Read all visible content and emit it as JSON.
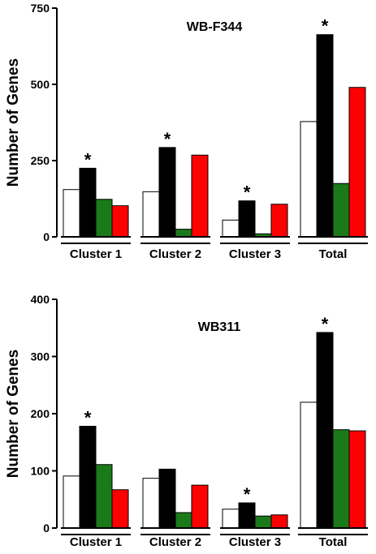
{
  "chart_data": [
    {
      "type": "bar",
      "title": "WB-F344",
      "ylabel": "Number of Genes",
      "ylim": [
        0,
        750
      ],
      "yticks": [
        0,
        250,
        500,
        750
      ],
      "categories": [
        "Cluster 1",
        "Cluster 2",
        "Cluster 3",
        "Total"
      ],
      "series_colors": [
        "#ffffff",
        "#000000",
        "#1a7a1a",
        "#ff0000"
      ],
      "values": [
        [
          155,
          225,
          123,
          102
        ],
        [
          148,
          293,
          25,
          268
        ],
        [
          55,
          118,
          10,
          107
        ],
        [
          378,
          663,
          175,
          490
        ]
      ],
      "significant": [
        1,
        1,
        1,
        1
      ],
      "significant_marker": "*"
    },
    {
      "type": "bar",
      "title": "WB311",
      "ylabel": "Number of Genes",
      "ylim": [
        0,
        400
      ],
      "yticks": [
        0,
        100,
        200,
        300,
        400
      ],
      "categories": [
        "Cluster 1",
        "Cluster 2",
        "Cluster 3",
        "Total"
      ],
      "series_colors": [
        "#ffffff",
        "#000000",
        "#1a7a1a",
        "#ff0000"
      ],
      "values": [
        [
          91,
          178,
          111,
          67
        ],
        [
          87,
          103,
          27,
          75
        ],
        [
          33,
          44,
          21,
          23
        ],
        [
          220,
          342,
          172,
          170
        ]
      ],
      "significant": [
        1,
        0,
        1,
        1
      ],
      "significant_marker": "*"
    }
  ]
}
